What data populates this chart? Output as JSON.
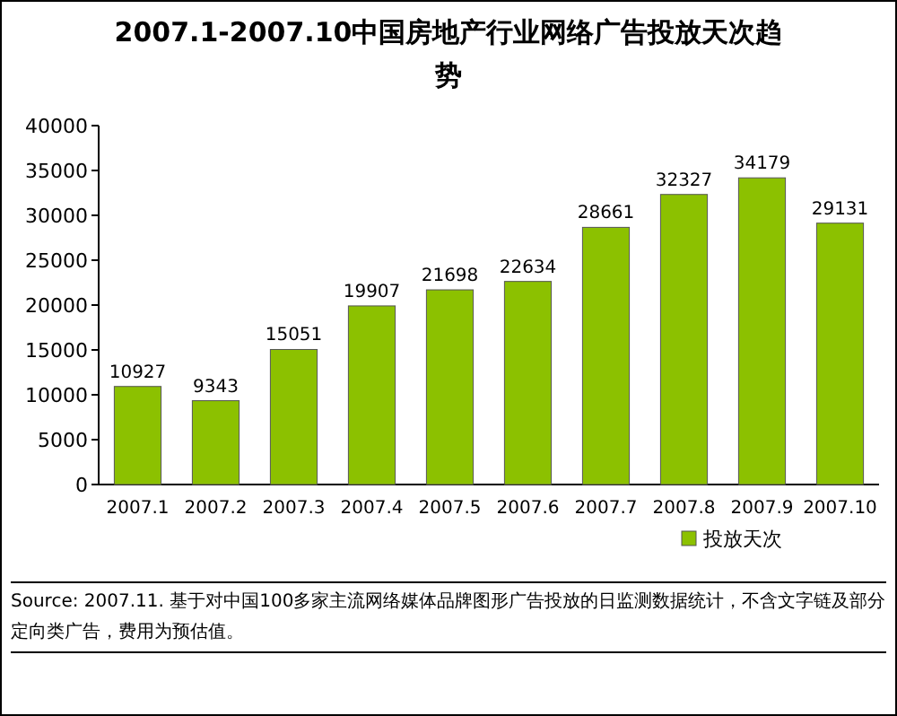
{
  "chart_data": {
    "type": "bar",
    "title": "2007.1-2007.10中国房地产行业网络广告投放天次趋势",
    "categories": [
      "2007.1",
      "2007.2",
      "2007.3",
      "2007.4",
      "2007.5",
      "2007.6",
      "2007.7",
      "2007.8",
      "2007.9",
      "2007.10"
    ],
    "series": [
      {
        "name": "投放天次",
        "color": "#8cc100",
        "values": [
          10927,
          9343,
          15051,
          19907,
          21698,
          22634,
          28661,
          32327,
          34179,
          29131
        ]
      }
    ],
    "ylim": [
      0,
      40000
    ],
    "yticks": [
      0,
      5000,
      10000,
      15000,
      20000,
      25000,
      30000,
      35000,
      40000
    ],
    "data_labels": true,
    "legend": "bottom",
    "grid": false,
    "annotations": [
      "Source: 2007.11. 基于对中国100多家主流网络媒体品牌图形广告投放的日监测数据统计，不含文字链及部分定向类广告，费用为预估值。"
    ]
  }
}
